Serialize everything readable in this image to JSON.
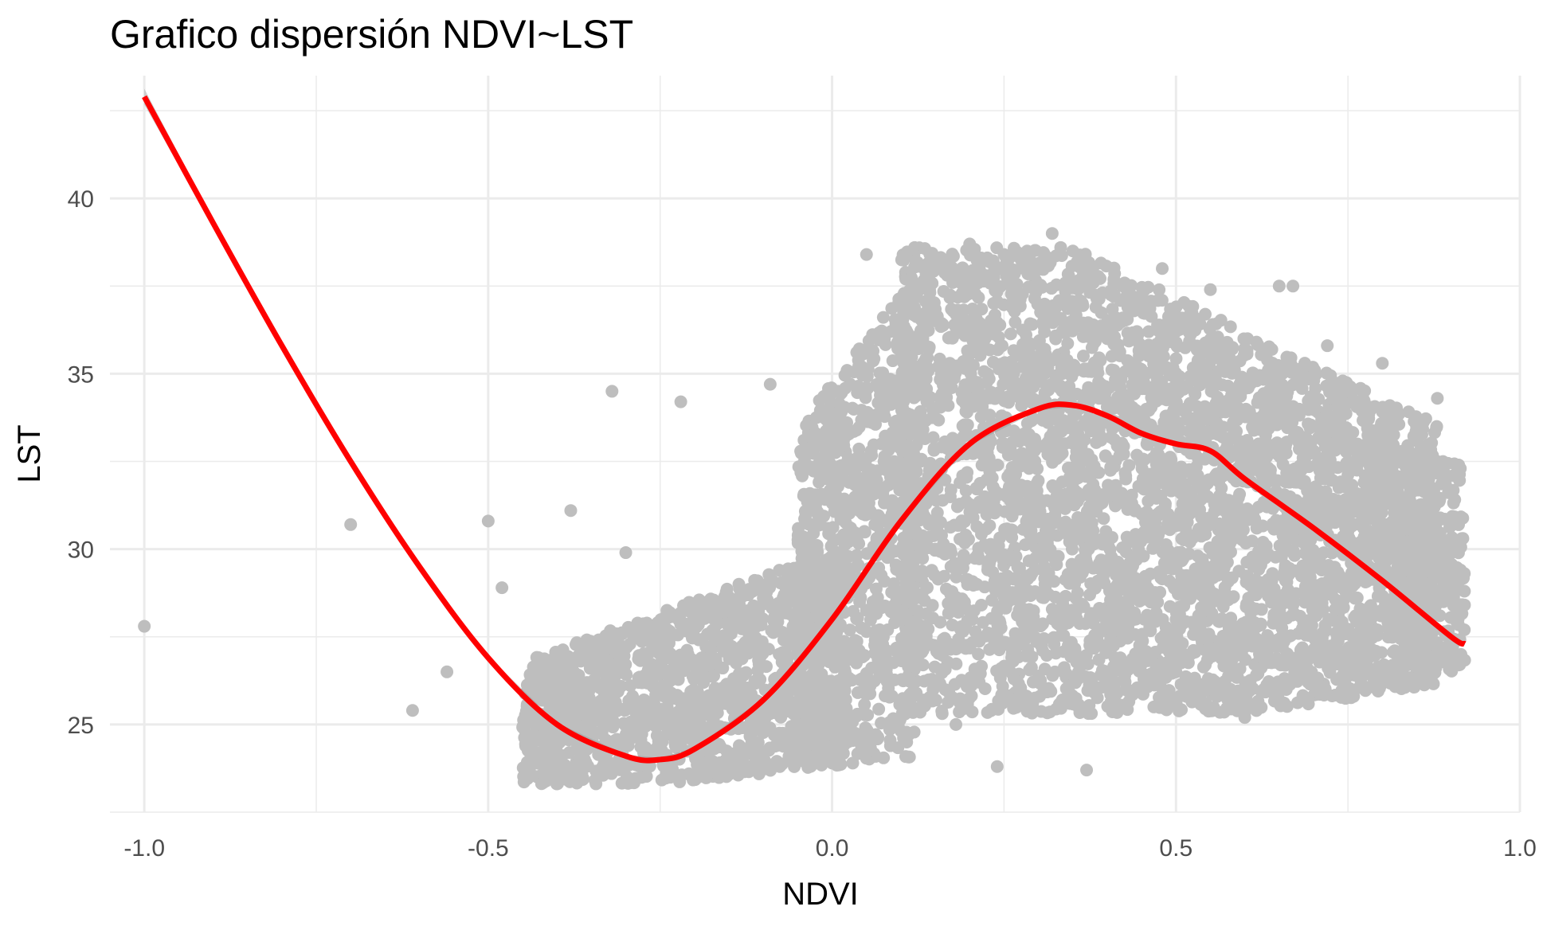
{
  "chart_data": {
    "type": "scatter",
    "title": "Grafico dispersión NDVI~LST",
    "xlabel": "NDVI",
    "ylabel": "LST",
    "xlim": [
      -1.05,
      1.0
    ],
    "ylim": [
      22.5,
      43.5
    ],
    "x_ticks": [
      {
        "value": -1.0,
        "label": "-1.0"
      },
      {
        "value": -0.5,
        "label": "-0.5"
      },
      {
        "value": 0.0,
        "label": "0.0"
      },
      {
        "value": 0.5,
        "label": "0.5"
      },
      {
        "value": 1.0,
        "label": "1.0"
      }
    ],
    "y_ticks": [
      {
        "value": 25,
        "label": "25"
      },
      {
        "value": 30,
        "label": "30"
      },
      {
        "value": 35,
        "label": "35"
      },
      {
        "value": 40,
        "label": "40"
      }
    ],
    "grid": true,
    "colors": {
      "points": "#bebebe",
      "smooth_line": "#ff0000",
      "confidence_band": "#999999",
      "grid": "#ebebeb"
    },
    "series": [
      {
        "kind": "points",
        "x": [
          -1.0,
          -0.7,
          -0.61,
          -0.56,
          -0.5,
          -0.32,
          -0.22,
          -0.09,
          -0.3,
          -0.38,
          -0.48,
          -0.44,
          -0.36,
          -0.24,
          -0.15,
          0.0,
          0.03,
          0.05,
          0.12,
          0.2,
          0.25,
          0.32,
          0.35,
          0.48,
          0.55,
          0.65,
          0.67,
          0.72,
          0.8,
          0.88,
          0.9,
          0.6,
          0.37,
          0.24,
          0.0,
          0.04,
          -0.25,
          -0.2,
          0.15,
          0.45,
          0.75,
          0.85,
          0.18,
          0.1,
          0.62,
          0.4,
          0.3,
          0.5,
          0.7,
          0.78
        ],
        "y": [
          27.8,
          30.7,
          25.4,
          26.5,
          30.8,
          34.5,
          34.2,
          34.7,
          29.9,
          31.1,
          28.9,
          24.6,
          24.0,
          23.5,
          23.8,
          23.9,
          23.9,
          38.4,
          38.6,
          38.7,
          38.4,
          39.0,
          38.5,
          38.0,
          37.4,
          37.5,
          37.5,
          35.8,
          35.3,
          34.3,
          29.5,
          25.2,
          23.7,
          23.8,
          32.0,
          28.5,
          26.0,
          27.5,
          30.0,
          31.0,
          30.5,
          29.0,
          25.0,
          27.0,
          33.0,
          36.0,
          35.5,
          28.0,
          28.5,
          27.0
        ]
      },
      {
        "kind": "smooth",
        "x": [
          -1.0,
          -0.9,
          -0.8,
          -0.7,
          -0.6,
          -0.5,
          -0.4,
          -0.3,
          -0.25,
          -0.2,
          -0.1,
          0.0,
          0.1,
          0.2,
          0.3,
          0.35,
          0.4,
          0.45,
          0.5,
          0.55,
          0.6,
          0.7,
          0.8,
          0.9,
          0.92
        ],
        "y": [
          42.9,
          39.3,
          35.8,
          32.5,
          29.5,
          26.9,
          25.0,
          24.1,
          24.0,
          24.3,
          25.7,
          28.0,
          30.8,
          33.0,
          34.0,
          34.1,
          33.8,
          33.3,
          33.0,
          32.8,
          32.0,
          30.6,
          29.1,
          27.5,
          27.3
        ]
      }
    ]
  }
}
